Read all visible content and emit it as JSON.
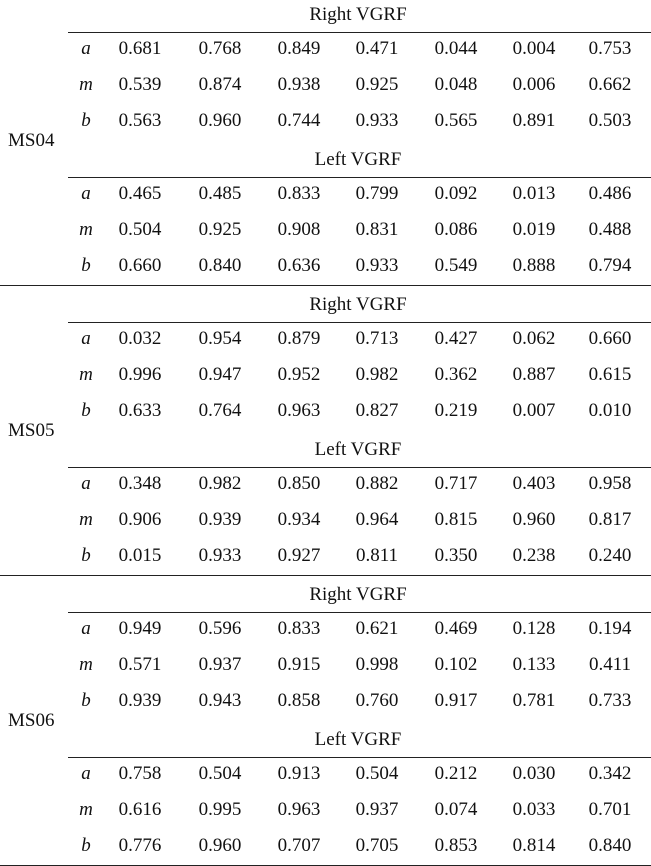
{
  "subjects": [
    {
      "id": "MS04",
      "blocks": [
        {
          "heading": "Right VGRF",
          "rows": [
            {
              "param": "a",
              "values": [
                "0.681",
                "0.768",
                "0.849",
                "0.471",
                "0.044",
                "0.004",
                "0.753"
              ]
            },
            {
              "param": "m",
              "values": [
                "0.539",
                "0.874",
                "0.938",
                "0.925",
                "0.048",
                "0.006",
                "0.662"
              ]
            },
            {
              "param": "b",
              "values": [
                "0.563",
                "0.960",
                "0.744",
                "0.933",
                "0.565",
                "0.891",
                "0.503"
              ]
            }
          ]
        },
        {
          "heading": "Left VGRF",
          "rows": [
            {
              "param": "a",
              "values": [
                "0.465",
                "0.485",
                "0.833",
                "0.799",
                "0.092",
                "0.013",
                "0.486"
              ]
            },
            {
              "param": "m",
              "values": [
                "0.504",
                "0.925",
                "0.908",
                "0.831",
                "0.086",
                "0.019",
                "0.488"
              ]
            },
            {
              "param": "b",
              "values": [
                "0.660",
                "0.840",
                "0.636",
                "0.933",
                "0.549",
                "0.888",
                "0.794"
              ]
            }
          ]
        }
      ]
    },
    {
      "id": "MS05",
      "blocks": [
        {
          "heading": "Right VGRF",
          "rows": [
            {
              "param": "a",
              "values": [
                "0.032",
                "0.954",
                "0.879",
                "0.713",
                "0.427",
                "0.062",
                "0.660"
              ]
            },
            {
              "param": "m",
              "values": [
                "0.996",
                "0.947",
                "0.952",
                "0.982",
                "0.362",
                "0.887",
                "0.615"
              ]
            },
            {
              "param": "b",
              "values": [
                "0.633",
                "0.764",
                "0.963",
                "0.827",
                "0.219",
                "0.007",
                "0.010"
              ]
            }
          ]
        },
        {
          "heading": "Left VGRF",
          "rows": [
            {
              "param": "a",
              "values": [
                "0.348",
                "0.982",
                "0.850",
                "0.882",
                "0.717",
                "0.403",
                "0.958"
              ]
            },
            {
              "param": "m",
              "values": [
                "0.906",
                "0.939",
                "0.934",
                "0.964",
                "0.815",
                "0.960",
                "0.817"
              ]
            },
            {
              "param": "b",
              "values": [
                "0.015",
                "0.933",
                "0.927",
                "0.811",
                "0.350",
                "0.238",
                "0.240"
              ]
            }
          ]
        }
      ]
    },
    {
      "id": "MS06",
      "blocks": [
        {
          "heading": "Right VGRF",
          "rows": [
            {
              "param": "a",
              "values": [
                "0.949",
                "0.596",
                "0.833",
                "0.621",
                "0.469",
                "0.128",
                "0.194"
              ]
            },
            {
              "param": "m",
              "values": [
                "0.571",
                "0.937",
                "0.915",
                "0.998",
                "0.102",
                "0.133",
                "0.411"
              ]
            },
            {
              "param": "b",
              "values": [
                "0.939",
                "0.943",
                "0.858",
                "0.760",
                "0.917",
                "0.781",
                "0.733"
              ]
            }
          ]
        },
        {
          "heading": "Left VGRF",
          "rows": [
            {
              "param": "a",
              "values": [
                "0.758",
                "0.504",
                "0.913",
                "0.504",
                "0.212",
                "0.030",
                "0.342"
              ]
            },
            {
              "param": "m",
              "values": [
                "0.616",
                "0.995",
                "0.963",
                "0.937",
                "0.074",
                "0.033",
                "0.701"
              ]
            },
            {
              "param": "b",
              "values": [
                "0.776",
                "0.960",
                "0.707",
                "0.705",
                "0.853",
                "0.814",
                "0.840"
              ]
            }
          ]
        }
      ]
    }
  ]
}
